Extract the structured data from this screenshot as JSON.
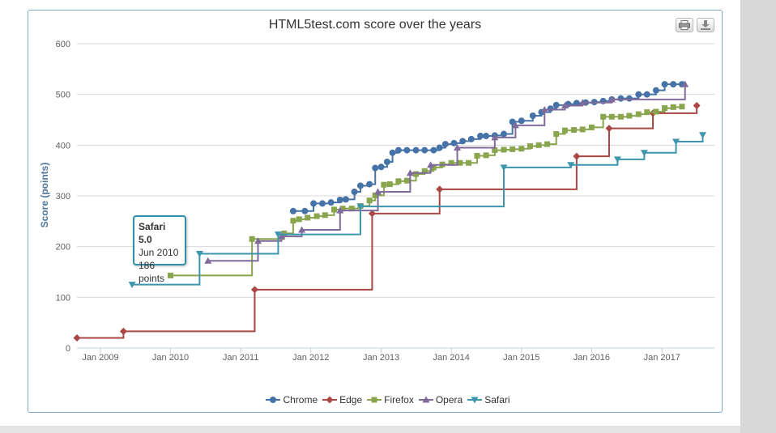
{
  "chart_data": {
    "type": "line",
    "title": "HTML5test.com score over the years",
    "ylabel": "Score (points)",
    "xlabel": "",
    "ylim": [
      0,
      600
    ],
    "y_ticks": [
      0,
      100,
      200,
      300,
      400,
      500,
      600
    ],
    "x_range": [
      "2008-09-01",
      "2017-10-01"
    ],
    "x_ticks": [
      {
        "date": "2009-01-01",
        "label": "Jan 2009"
      },
      {
        "date": "2010-01-01",
        "label": "Jan 2010"
      },
      {
        "date": "2011-01-01",
        "label": "Jan 2011"
      },
      {
        "date": "2012-01-01",
        "label": "Jan 2012"
      },
      {
        "date": "2013-01-01",
        "label": "Jan 2013"
      },
      {
        "date": "2014-01-01",
        "label": "Jan 2014"
      },
      {
        "date": "2015-01-01",
        "label": "Jan 2015"
      },
      {
        "date": "2016-01-01",
        "label": "Jan 2016"
      },
      {
        "date": "2017-01-01",
        "label": "Jan 2017"
      }
    ],
    "grid": true,
    "legend_position": "bottom-center",
    "step": true,
    "series": [
      {
        "name": "Chrome",
        "color": "#4572a7",
        "marker": "circle",
        "points": [
          [
            "2011-10-01",
            270
          ],
          [
            "2011-12-01",
            270
          ],
          [
            "2012-01-15",
            285
          ],
          [
            "2012-03-01",
            285
          ],
          [
            "2012-04-15",
            287
          ],
          [
            "2012-06-01",
            292
          ],
          [
            "2012-07-01",
            293
          ],
          [
            "2012-08-15",
            308
          ],
          [
            "2012-09-15",
            320
          ],
          [
            "2012-11-01",
            323
          ],
          [
            "2012-12-01",
            355
          ],
          [
            "2013-01-01",
            357
          ],
          [
            "2013-02-01",
            367
          ],
          [
            "2013-03-01",
            385
          ],
          [
            "2013-04-01",
            390
          ],
          [
            "2013-05-15",
            390
          ],
          [
            "2013-07-01",
            390
          ],
          [
            "2013-08-15",
            390
          ],
          [
            "2013-10-01",
            390
          ],
          [
            "2013-11-01",
            395
          ],
          [
            "2013-12-01",
            402
          ],
          [
            "2014-01-15",
            404
          ],
          [
            "2014-03-01",
            408
          ],
          [
            "2014-04-15",
            412
          ],
          [
            "2014-06-01",
            418
          ],
          [
            "2014-07-01",
            418
          ],
          [
            "2014-08-15",
            419
          ],
          [
            "2014-10-01",
            422
          ],
          [
            "2014-11-15",
            446
          ],
          [
            "2015-01-01",
            448
          ],
          [
            "2015-03-01",
            458
          ],
          [
            "2015-04-15",
            465
          ],
          [
            "2015-06-01",
            472
          ],
          [
            "2015-07-01",
            479
          ],
          [
            "2015-09-01",
            481
          ],
          [
            "2015-10-15",
            483
          ],
          [
            "2015-12-01",
            484
          ],
          [
            "2016-01-15",
            485
          ],
          [
            "2016-03-01",
            487
          ],
          [
            "2016-04-15",
            490
          ],
          [
            "2016-06-01",
            492
          ],
          [
            "2016-07-15",
            492
          ],
          [
            "2016-09-01",
            500
          ],
          [
            "2016-10-15",
            500
          ],
          [
            "2016-12-01",
            508
          ],
          [
            "2017-01-15",
            520
          ],
          [
            "2017-03-01",
            520
          ],
          [
            "2017-04-15",
            520
          ]
        ]
      },
      {
        "name": "Edge",
        "color": "#aa4643",
        "marker": "diamond",
        "points": [
          [
            "2008-09-01",
            20
          ],
          [
            "2009-05-01",
            33
          ],
          [
            "2011-03-15",
            115
          ],
          [
            "2012-11-15",
            265
          ],
          [
            "2013-11-01",
            313
          ],
          [
            "2015-10-15",
            378
          ],
          [
            "2016-04-01",
            433
          ],
          [
            "2016-11-15",
            463
          ],
          [
            "2017-07-01",
            478
          ]
        ]
      },
      {
        "name": "Firefox",
        "color": "#89a54e",
        "marker": "square",
        "points": [
          [
            "2010-01-01",
            143
          ],
          [
            "2011-03-01",
            215
          ],
          [
            "2011-08-15",
            226
          ],
          [
            "2011-10-01",
            251
          ],
          [
            "2011-11-01",
            254
          ],
          [
            "2011-12-15",
            257
          ],
          [
            "2012-02-01",
            260
          ],
          [
            "2012-03-15",
            262
          ],
          [
            "2012-05-01",
            273
          ],
          [
            "2012-06-15",
            275
          ],
          [
            "2012-08-01",
            275
          ],
          [
            "2012-09-15",
            280
          ],
          [
            "2012-11-01",
            291
          ],
          [
            "2012-12-01",
            301
          ],
          [
            "2013-01-15",
            322
          ],
          [
            "2013-02-15",
            323
          ],
          [
            "2013-04-01",
            329
          ],
          [
            "2013-05-15",
            330
          ],
          [
            "2013-07-01",
            343
          ],
          [
            "2013-08-15",
            349
          ],
          [
            "2013-10-01",
            356
          ],
          [
            "2013-11-15",
            362
          ],
          [
            "2014-01-01",
            365
          ],
          [
            "2014-02-15",
            365
          ],
          [
            "2014-04-01",
            365
          ],
          [
            "2014-05-15",
            379
          ],
          [
            "2014-07-01",
            380
          ],
          [
            "2014-08-15",
            390
          ],
          [
            "2014-10-01",
            391
          ],
          [
            "2014-11-15",
            392
          ],
          [
            "2015-01-01",
            393
          ],
          [
            "2015-02-15",
            398
          ],
          [
            "2015-04-01",
            400
          ],
          [
            "2015-05-15",
            402
          ],
          [
            "2015-07-01",
            422
          ],
          [
            "2015-08-15",
            429
          ],
          [
            "2015-10-01",
            430
          ],
          [
            "2015-11-15",
            431
          ],
          [
            "2016-01-01",
            435
          ],
          [
            "2016-03-01",
            456
          ],
          [
            "2016-04-15",
            456
          ],
          [
            "2016-06-01",
            456
          ],
          [
            "2016-07-15",
            458
          ],
          [
            "2016-09-01",
            461
          ],
          [
            "2016-10-15",
            465
          ],
          [
            "2016-12-01",
            466
          ],
          [
            "2017-01-15",
            473
          ],
          [
            "2017-03-01",
            475
          ],
          [
            "2017-04-15",
            476
          ]
        ]
      },
      {
        "name": "Opera",
        "color": "#80699b",
        "marker": "triangle",
        "points": [
          [
            "2010-07-15",
            172
          ],
          [
            "2011-04-01",
            211
          ],
          [
            "2011-08-01",
            220
          ],
          [
            "2011-11-15",
            233
          ],
          [
            "2012-06-01",
            271
          ],
          [
            "2012-12-15",
            308
          ],
          [
            "2013-06-01",
            345
          ],
          [
            "2013-09-15",
            361
          ],
          [
            "2014-02-01",
            395
          ],
          [
            "2014-08-15",
            415
          ],
          [
            "2014-12-01",
            439
          ],
          [
            "2015-05-01",
            470
          ],
          [
            "2015-08-15",
            478
          ],
          [
            "2015-11-15",
            484
          ],
          [
            "2016-04-15",
            490
          ],
          [
            "2017-05-01",
            520
          ]
        ]
      },
      {
        "name": "Safari",
        "color": "#3d96ae",
        "marker": "triangle-down",
        "points": [
          [
            "2009-06-15",
            125
          ],
          [
            "2010-06-01",
            186
          ],
          [
            "2011-07-15",
            224
          ],
          [
            "2012-09-15",
            279
          ],
          [
            "2014-10-01",
            356
          ],
          [
            "2015-09-15",
            361
          ],
          [
            "2016-05-15",
            372
          ],
          [
            "2016-10-01",
            385
          ],
          [
            "2017-03-15",
            407
          ],
          [
            "2017-08-01",
            420
          ]
        ]
      }
    ]
  },
  "tooltip": {
    "series": "Safari 5.0",
    "date": "Jun 2010",
    "value": "186 points"
  },
  "legend": {
    "items": [
      "Chrome",
      "Edge",
      "Firefox",
      "Opera",
      "Safari"
    ]
  },
  "export_buttons": {
    "print_icon": "printer-icon",
    "download_icon": "download-icon"
  }
}
